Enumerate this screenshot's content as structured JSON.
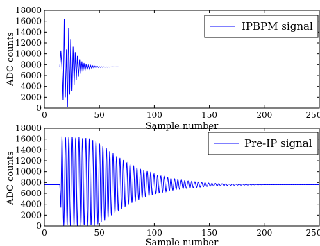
{
  "chart_data": [
    {
      "type": "line",
      "title": "",
      "xlabel": "Sample number",
      "ylabel": "ADC counts",
      "xlim": [
        0,
        250
      ],
      "ylim": [
        0,
        18000
      ],
      "x_ticks": [
        0,
        50,
        100,
        150,
        200,
        250
      ],
      "y_ticks": [
        0,
        2000,
        4000,
        6000,
        8000,
        10000,
        12000,
        14000,
        16000,
        18000
      ],
      "grid": false,
      "legend": "top-right",
      "series": [
        {
          "name": "IPBPM signal",
          "color": "#0000ff",
          "baseline": 7600,
          "x": [
            0,
            14,
            15,
            16,
            17,
            18,
            19,
            20,
            21,
            22,
            23,
            24,
            25,
            26,
            27,
            28,
            29,
            30,
            31,
            32,
            33,
            34,
            35,
            36,
            37,
            38,
            39,
            40,
            41,
            42,
            43,
            44,
            45,
            46,
            47,
            48,
            49,
            50,
            51,
            52,
            53,
            54,
            55,
            56,
            57,
            58,
            59,
            60,
            62,
            64,
            66,
            68,
            70,
            75,
            80,
            100,
            150,
            200,
            250
          ],
          "values": [
            7600,
            7600,
            10600,
            7600,
            1500,
            16400,
            2000,
            10800,
            200,
            14700,
            2500,
            12600,
            3200,
            11300,
            4300,
            10300,
            5200,
            9600,
            5800,
            9000,
            6300,
            8600,
            6700,
            8300,
            6900,
            8100,
            7100,
            7900,
            7200,
            7850,
            7300,
            7800,
            7400,
            7750,
            7450,
            7700,
            7500,
            7650,
            7520,
            7640,
            7540,
            7630,
            7560,
            7620,
            7570,
            7610,
            7580,
            7600,
            7610,
            7590,
            7605,
            7595,
            7600,
            7600,
            7600,
            7600,
            7600,
            7600,
            7600
          ]
        },
        {
          "name": "Pre-IP signal",
          "color": "#0000ff",
          "baseline": 7600,
          "decay_samples": [
            16,
            20,
            25,
            30,
            35,
            40,
            45,
            50,
            55,
            60,
            65,
            70,
            75,
            80,
            85,
            90,
            95,
            100,
            105,
            110,
            115,
            120,
            125,
            130,
            135,
            140,
            145,
            150,
            155,
            160,
            165,
            170,
            175,
            180,
            185,
            190,
            195,
            200
          ],
          "max_envelope": [
            16500,
            16500,
            16500,
            16400,
            16300,
            16200,
            15900,
            15300,
            14600,
            13800,
            13000,
            12400,
            11700,
            11200,
            10700,
            10300,
            10000,
            9600,
            9300,
            9000,
            8800,
            8600,
            8400,
            8300,
            8200,
            8100,
            8000,
            7900,
            7850,
            7800,
            7750,
            7720,
            7700,
            7690,
            7680,
            7650,
            7630,
            7610
          ],
          "min_envelope": [
            0,
            0,
            0,
            0,
            0,
            0,
            0,
            400,
            1000,
            1800,
            2500,
            3100,
            3700,
            4300,
            4800,
            5200,
            5500,
            5800,
            6100,
            6300,
            6500,
            6700,
            6800,
            6900,
            7000,
            7100,
            7200,
            7300,
            7350,
            7400,
            7450,
            7480,
            7500,
            7510,
            7520,
            7550,
            7570,
            7590
          ],
          "onset_sample": 14,
          "onset_dip": 3400,
          "oscillation_period": 3.1
        }
      ]
    }
  ]
}
